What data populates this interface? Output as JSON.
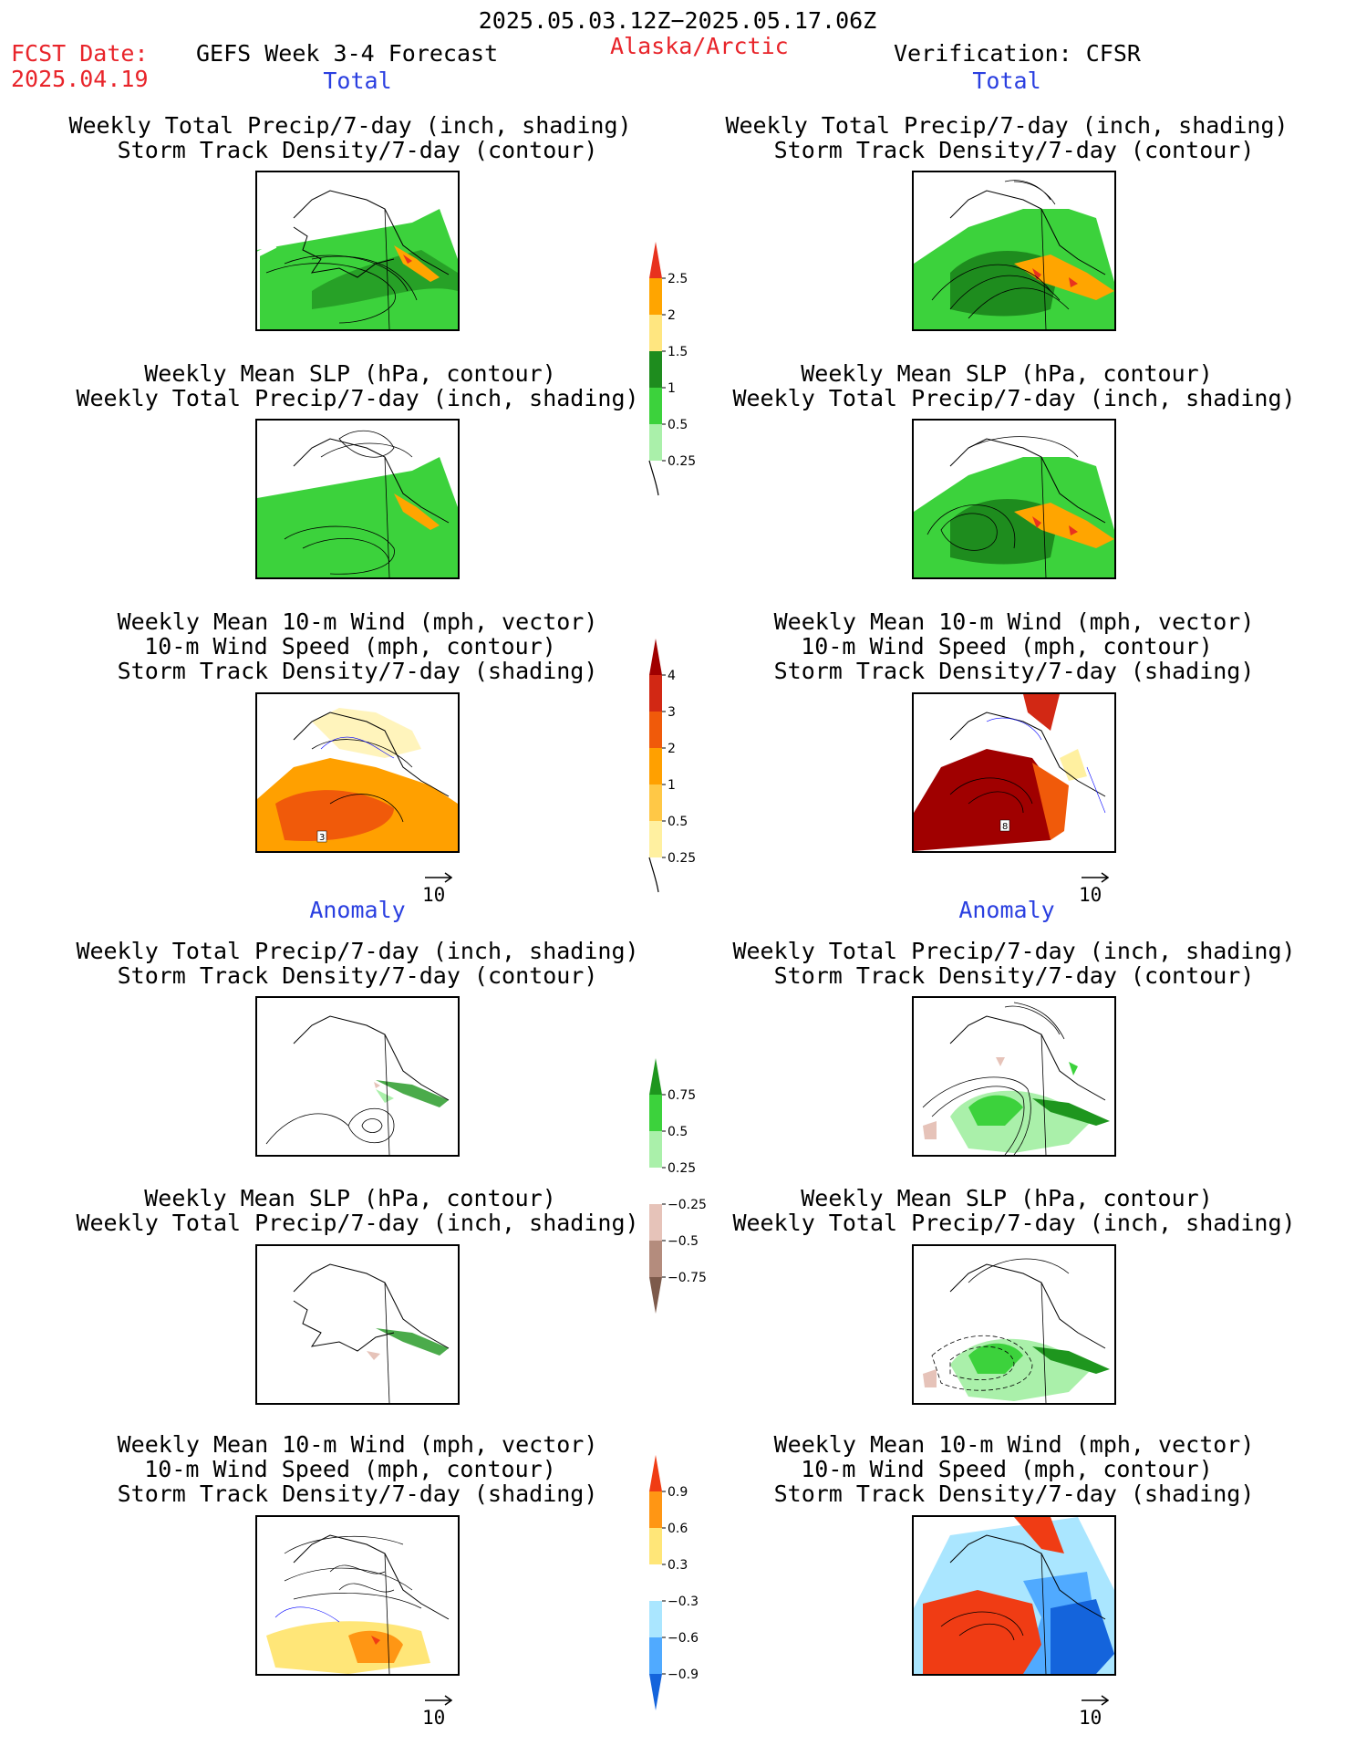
{
  "header": {
    "period": "2025.05.03.12Z−2025.05.17.06Z",
    "fcst_label": "FCST Date:",
    "fcst_date": "2025.04.19",
    "product": "GEFS Week 3-4 Forecast",
    "region": "Alaska/Arctic",
    "verification": "Verification: CFSR"
  },
  "sections": {
    "total": "Total",
    "anomaly": "Anomaly"
  },
  "titles": {
    "precip_storm_1": "Weekly Total Precip/7-day (inch, shading)",
    "precip_storm_2": "Storm Track Density/7-day (contour)",
    "slp_1": "Weekly Mean SLP (hPa, contour)",
    "slp_2": "Weekly Total Precip/7-day (inch, shading)",
    "wind_1": "Weekly Mean 10-m Wind (mph, vector)",
    "wind_2": "10-m Wind Speed (mph, contour)",
    "wind_3": "Storm Track Density/7-day (shading)"
  },
  "vector_ref": "10",
  "colorbars": {
    "precip_total": {
      "labels": [
        "2.5",
        "2",
        "1.5",
        "1",
        "0.5",
        "0.25"
      ],
      "colors": [
        "#e8321e",
        "#ffa500",
        "#ffe680",
        "#1e8c1e",
        "#3cd23c",
        "#aaf0aa"
      ]
    },
    "storm_total": {
      "labels": [
        "4",
        "3",
        "2",
        "1",
        "0.5",
        "0.25"
      ],
      "colors": [
        "#a00000",
        "#d22814",
        "#f05a0a",
        "#ffa000",
        "#ffc846",
        "#fff0a0"
      ]
    },
    "precip_anom": {
      "labels": [
        "0.75",
        "0.5",
        "0.25",
        "−0.25",
        "−0.5",
        "−0.75"
      ],
      "colors": [
        "#1e961e",
        "#3cd23c",
        "#aaf0aa",
        "#ffffff",
        "#e6c3b9",
        "#b48c7d",
        "#7d5a4b"
      ]
    },
    "storm_anom": {
      "labels": [
        "0.9",
        "0.6",
        "0.3",
        "−0.3",
        "−0.6",
        "−0.9"
      ],
      "colors": [
        "#f03c14",
        "#ff9614",
        "#ffe678",
        "#ffffff",
        "#aae6ff",
        "#50aaff",
        "#1464dc"
      ]
    }
  },
  "panel_annotations": {
    "left_total_wind": "3",
    "right_total_wind": "8"
  }
}
